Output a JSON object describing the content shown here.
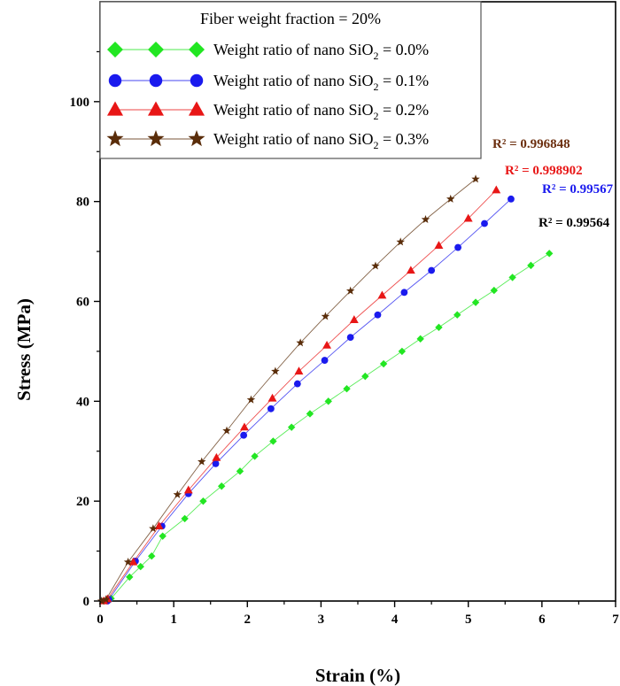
{
  "chart_data": {
    "type": "line",
    "xlabel": "Strain (%)",
    "ylabel": "Stress (MPa)",
    "xlim": [
      0,
      7
    ],
    "ylim": [
      0,
      120
    ],
    "xticks": [
      0,
      1,
      2,
      3,
      4,
      5,
      6,
      7
    ],
    "yticks": [
      0,
      20,
      40,
      60,
      80,
      100
    ],
    "grid": false,
    "legend": {
      "position": "top-left",
      "title": "Fiber weight fraction = 20%"
    },
    "series": [
      {
        "name": "Weight ratio of nano SiO2 = 0.0%",
        "label_prefix": "Weight ratio of nano SiO",
        "label_sub": "2",
        "label_suffix": " = 0.0%",
        "color": "#22e622",
        "marker": "diamond",
        "r2_text": "R² = 0.99564",
        "r2_color": "#000000",
        "points": [
          [
            0.05,
            0.0
          ],
          [
            0.15,
            0.5
          ],
          [
            0.4,
            4.8
          ],
          [
            0.55,
            6.9
          ],
          [
            0.7,
            9.0
          ],
          [
            0.85,
            13.0
          ],
          [
            1.15,
            16.5
          ],
          [
            1.4,
            20.0
          ],
          [
            1.65,
            23.0
          ],
          [
            1.9,
            26.0
          ],
          [
            2.1,
            29.0
          ],
          [
            2.35,
            32.0
          ],
          [
            2.6,
            34.8
          ],
          [
            2.85,
            37.5
          ],
          [
            3.1,
            40.0
          ],
          [
            3.35,
            42.5
          ],
          [
            3.6,
            45.0
          ],
          [
            3.85,
            47.5
          ],
          [
            4.1,
            50.0
          ],
          [
            4.35,
            52.5
          ],
          [
            4.6,
            54.8
          ],
          [
            4.85,
            57.3
          ],
          [
            5.1,
            59.8
          ],
          [
            5.35,
            62.2
          ],
          [
            5.6,
            64.8
          ],
          [
            5.85,
            67.2
          ],
          [
            6.1,
            69.6
          ]
        ]
      },
      {
        "name": "Weight ratio of nano SiO2 = 0.1%",
        "label_prefix": "Weight ratio of nano SiO",
        "label_sub": "2",
        "label_suffix": " = 0.1%",
        "color": "#1a1aee",
        "marker": "circle",
        "r2_text": "R² = 0.99567",
        "r2_color": "#1a1aee",
        "points": [
          [
            0.1,
            0.0
          ],
          [
            0.12,
            0.3
          ],
          [
            0.48,
            8.0
          ],
          [
            0.84,
            15.0
          ],
          [
            1.2,
            21.5
          ],
          [
            1.57,
            27.5
          ],
          [
            1.95,
            33.2
          ],
          [
            2.32,
            38.5
          ],
          [
            2.68,
            43.5
          ],
          [
            3.05,
            48.2
          ],
          [
            3.4,
            52.8
          ],
          [
            3.77,
            57.3
          ],
          [
            4.13,
            61.8
          ],
          [
            4.5,
            66.2
          ],
          [
            4.86,
            70.8
          ],
          [
            5.22,
            75.6
          ],
          [
            5.58,
            80.5
          ]
        ]
      },
      {
        "name": "Weight ratio of nano SiO2 = 0.2%",
        "label_prefix": "Weight ratio of nano SiO",
        "label_sub": "2",
        "label_suffix": " = 0.2%",
        "color": "#e81616",
        "marker": "triangle",
        "r2_text": "R² = 0.998902",
        "r2_color": "#e81616",
        "points": [
          [
            0.05,
            0.0
          ],
          [
            0.1,
            0.4
          ],
          [
            0.45,
            7.8
          ],
          [
            0.8,
            15.0
          ],
          [
            1.2,
            22.2
          ],
          [
            1.58,
            28.7
          ],
          [
            1.96,
            34.8
          ],
          [
            2.34,
            40.6
          ],
          [
            2.7,
            46.0
          ],
          [
            3.08,
            51.2
          ],
          [
            3.45,
            56.3
          ],
          [
            3.83,
            61.2
          ],
          [
            4.22,
            66.2
          ],
          [
            4.6,
            71.2
          ],
          [
            5.0,
            76.6
          ],
          [
            5.38,
            82.3
          ]
        ]
      },
      {
        "name": "Weight ratio of nano SiO2 = 0.3%",
        "label_prefix": "Weight ratio of nano SiO",
        "label_sub": "2",
        "label_suffix": " = 0.3%",
        "color": "#5a2d0a",
        "marker": "star",
        "r2_text": "R² = 0.996848",
        "r2_color": "#6b2e0e",
        "points": [
          [
            0.02,
            0.0
          ],
          [
            0.08,
            0.3
          ],
          [
            0.38,
            7.8
          ],
          [
            0.72,
            14.5
          ],
          [
            1.05,
            21.3
          ],
          [
            1.38,
            27.9
          ],
          [
            1.72,
            34.1
          ],
          [
            2.05,
            40.3
          ],
          [
            2.38,
            46.0
          ],
          [
            2.72,
            51.7
          ],
          [
            3.06,
            57.0
          ],
          [
            3.4,
            62.1
          ],
          [
            3.74,
            67.1
          ],
          [
            4.08,
            71.9
          ],
          [
            4.42,
            76.4
          ],
          [
            4.76,
            80.5
          ],
          [
            5.1,
            84.5
          ]
        ]
      }
    ]
  }
}
